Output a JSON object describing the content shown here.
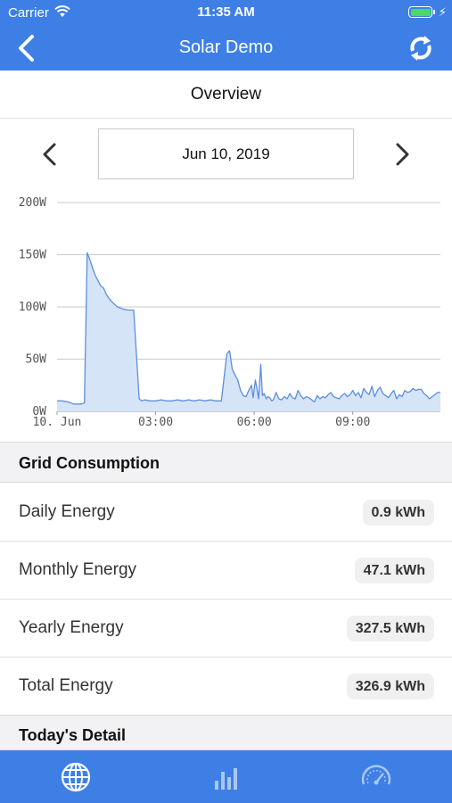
{
  "status_bar": {
    "carrier": "Carrier",
    "time": "11:35 AM",
    "battery_level": 1.0
  },
  "nav": {
    "title": "Solar Demo",
    "back_icon": "chevron-left-icon",
    "refresh_icon": "refresh-icon"
  },
  "overview": {
    "title": "Overview"
  },
  "date_picker": {
    "date": "Jun 10, 2019",
    "prev_icon": "chevron-left-icon",
    "next_icon": "chevron-right-icon"
  },
  "chart_data": {
    "type": "area",
    "title": "",
    "xlabel": "",
    "ylabel": "",
    "y_ticks": [
      "0W",
      "50W",
      "100W",
      "150W",
      "200W"
    ],
    "x_ticks": [
      {
        "label": "10. Jun",
        "t": 0
      },
      {
        "label": "03:00",
        "t": 180
      },
      {
        "label": "06:00",
        "t": 360
      },
      {
        "label": "09:00",
        "t": 540
      }
    ],
    "xlim": [
      0,
      700
    ],
    "ylim": [
      0,
      200
    ],
    "color": "#5b8fdf",
    "fill": "#d6e4f7",
    "grid": true,
    "series": [
      {
        "x": [
          0,
          10,
          20,
          30,
          40,
          45,
          50,
          55,
          60,
          65,
          70,
          75,
          80,
          85,
          90,
          95,
          100,
          110,
          120,
          130,
          140,
          150,
          152,
          155,
          160,
          170,
          180,
          190,
          200,
          210,
          220,
          230,
          240,
          250,
          260,
          270,
          280,
          290,
          300,
          310,
          315,
          320,
          325,
          330,
          335,
          340,
          345,
          350,
          355,
          358,
          362,
          365,
          368,
          372,
          375,
          378,
          382,
          385,
          388,
          392,
          395,
          400,
          405,
          410,
          415,
          420,
          425,
          430,
          435,
          440,
          445,
          450,
          455,
          460,
          465,
          470,
          475,
          480,
          485,
          490,
          495,
          500,
          505,
          510,
          515,
          520,
          525,
          530,
          535,
          540,
          545,
          550,
          555,
          560,
          565,
          570,
          575,
          580,
          585,
          590,
          595,
          600,
          605,
          610,
          615,
          620,
          625,
          630,
          635,
          640,
          645,
          650,
          655,
          660,
          665,
          670,
          675,
          680,
          685,
          690,
          695,
          700
        ],
        "y": [
          10,
          10,
          9,
          7,
          7,
          7,
          8,
          152,
          145,
          137,
          130,
          125,
          120,
          118,
          112,
          108,
          105,
          100,
          98,
          97,
          97,
          12,
          11,
          10,
          11,
          10,
          10,
          11,
          10,
          10,
          11,
          10,
          11,
          10,
          11,
          10,
          11,
          10,
          10,
          55,
          58,
          40,
          35,
          30,
          20,
          15,
          14,
          20,
          25,
          13,
          30,
          22,
          12,
          45,
          15,
          17,
          12,
          14,
          13,
          10,
          11,
          18,
          12,
          11,
          14,
          12,
          17,
          13,
          12,
          20,
          15,
          12,
          14,
          13,
          11,
          9,
          15,
          12,
          14,
          13,
          16,
          18,
          14,
          13,
          12,
          15,
          17,
          14,
          16,
          20,
          15,
          18,
          13,
          22,
          18,
          16,
          24,
          14,
          20,
          23,
          17,
          15,
          13,
          17,
          20,
          12,
          16,
          14,
          20,
          18,
          19,
          22,
          20,
          21,
          21,
          17,
          15,
          12,
          14,
          16,
          18,
          18
        ]
      }
    ]
  },
  "grid_consumption": {
    "header": "Grid Consumption",
    "rows": [
      {
        "label": "Daily Energy",
        "value": "0.9 kWh"
      },
      {
        "label": "Monthly Energy",
        "value": "47.1 kWh"
      },
      {
        "label": "Yearly Energy",
        "value": "327.5 kWh"
      },
      {
        "label": "Total Energy",
        "value": "326.9 kWh"
      }
    ]
  },
  "todays_detail": {
    "header": "Today's Detail"
  },
  "tabs": [
    {
      "icon": "globe-icon"
    },
    {
      "icon": "bar-chart-icon"
    },
    {
      "icon": "gauge-icon"
    }
  ],
  "colors": {
    "brand": "#3e7fe6",
    "chart_line": "#5b8fdf",
    "chart_fill": "#d6e4f7"
  }
}
